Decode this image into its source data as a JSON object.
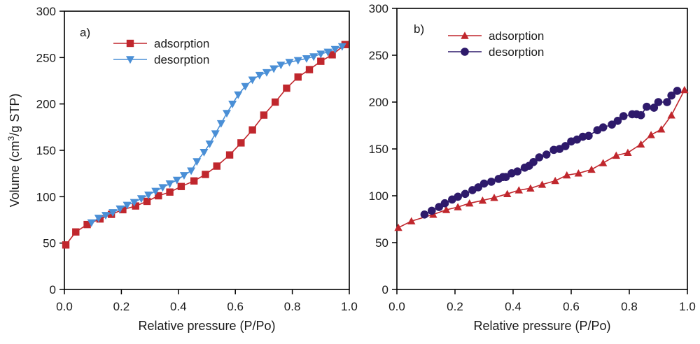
{
  "chart_data": [
    {
      "type": "line",
      "panel_label": "a)",
      "title": "",
      "xlabel": "Relative pressure (P/Po)",
      "ylabel": "Volume (cm3/g STP)",
      "ylabel_parts": {
        "prefix": "Volume (cm",
        "sup": "3",
        "suffix": "/g STP)"
      },
      "xlim": [
        0.0,
        1.0
      ],
      "ylim": [
        0,
        300
      ],
      "xticks": [
        "0.0",
        "0.2",
        "0.4",
        "0.6",
        "0.8",
        "1.0"
      ],
      "xtick_values": [
        0.0,
        0.2,
        0.4,
        0.6,
        0.8,
        1.0
      ],
      "yticks": [
        "0",
        "50",
        "100",
        "150",
        "200",
        "250",
        "300"
      ],
      "ytick_values": [
        0,
        50,
        100,
        150,
        200,
        250,
        300
      ],
      "legend_position": "top-left",
      "series": [
        {
          "name": "adsorption",
          "marker": "square",
          "color": "#c0272d",
          "x": [
            0.005,
            0.04,
            0.08,
            0.125,
            0.165,
            0.205,
            0.25,
            0.29,
            0.33,
            0.37,
            0.41,
            0.455,
            0.495,
            0.535,
            0.58,
            0.62,
            0.66,
            0.7,
            0.74,
            0.78,
            0.82,
            0.86,
            0.9,
            0.94,
            0.985
          ],
          "y": [
            48,
            62,
            70,
            76,
            81,
            86,
            90,
            95,
            101,
            105,
            111,
            117,
            124,
            133,
            145,
            158,
            172,
            188,
            202,
            217,
            229,
            237,
            246,
            253,
            264
          ]
        },
        {
          "name": "desorption",
          "marker": "triangle-down",
          "color": "#4a8fd6",
          "x": [
            0.095,
            0.12,
            0.145,
            0.17,
            0.195,
            0.22,
            0.245,
            0.27,
            0.295,
            0.32,
            0.345,
            0.37,
            0.395,
            0.42,
            0.445,
            0.465,
            0.49,
            0.51,
            0.53,
            0.55,
            0.57,
            0.59,
            0.61,
            0.635,
            0.66,
            0.685,
            0.71,
            0.735,
            0.76,
            0.79,
            0.82,
            0.85,
            0.875,
            0.9,
            0.925,
            0.95,
            0.975
          ],
          "y": [
            72,
            77,
            80,
            83,
            87,
            91,
            94,
            98,
            102,
            106,
            110,
            114,
            118,
            123,
            128,
            138,
            148,
            157,
            168,
            179,
            190,
            200,
            210,
            219,
            226,
            231,
            234,
            238,
            242,
            245,
            247,
            249,
            251,
            254,
            256,
            259,
            262
          ]
        }
      ]
    },
    {
      "type": "line",
      "panel_label": "b)",
      "title": "",
      "xlabel": "Relative pressure (P/Po)",
      "ylabel": "",
      "xlim": [
        0.0,
        1.0
      ],
      "ylim": [
        0,
        300
      ],
      "xticks": [
        "0.0",
        "0.2",
        "0.4",
        "0.6",
        "0.8",
        "1.0"
      ],
      "xtick_values": [
        0.0,
        0.2,
        0.4,
        0.6,
        0.8,
        1.0
      ],
      "yticks": [
        "0",
        "50",
        "100",
        "150",
        "200",
        "250",
        "300"
      ],
      "ytick_values": [
        0,
        50,
        100,
        150,
        200,
        250,
        300
      ],
      "legend_position": "top-left",
      "series": [
        {
          "name": "adsorption",
          "marker": "triangle-up",
          "color": "#c0272d",
          "x": [
            0.005,
            0.05,
            0.125,
            0.17,
            0.21,
            0.25,
            0.295,
            0.335,
            0.38,
            0.42,
            0.46,
            0.5,
            0.545,
            0.585,
            0.625,
            0.67,
            0.71,
            0.755,
            0.795,
            0.84,
            0.875,
            0.91,
            0.945,
            0.99
          ],
          "y": [
            66,
            73,
            80,
            85,
            88,
            92,
            95,
            98,
            102,
            106,
            108,
            112,
            116,
            122,
            124,
            128,
            135,
            143,
            146,
            155,
            165,
            171,
            186,
            213
          ]
        },
        {
          "name": "desorption",
          "marker": "circle",
          "color": "#2e1a6b",
          "x": [
            0.095,
            0.12,
            0.145,
            0.165,
            0.19,
            0.21,
            0.235,
            0.26,
            0.28,
            0.3,
            0.325,
            0.35,
            0.365,
            0.375,
            0.395,
            0.415,
            0.44,
            0.455,
            0.47,
            0.49,
            0.515,
            0.54,
            0.56,
            0.58,
            0.6,
            0.62,
            0.64,
            0.66,
            0.69,
            0.71,
            0.74,
            0.76,
            0.78,
            0.81,
            0.825,
            0.84,
            0.86,
            0.885,
            0.9,
            0.93,
            0.945,
            0.965
          ],
          "y": [
            80,
            84,
            88,
            92,
            96,
            99,
            102,
            106,
            109,
            113,
            115,
            118,
            120,
            120,
            124,
            126,
            130,
            132,
            136,
            141,
            144,
            149,
            150,
            153,
            158,
            160,
            163,
            164,
            170,
            173,
            176,
            180,
            185,
            187,
            187,
            186,
            195,
            194,
            200,
            200,
            207,
            212
          ]
        }
      ]
    }
  ]
}
